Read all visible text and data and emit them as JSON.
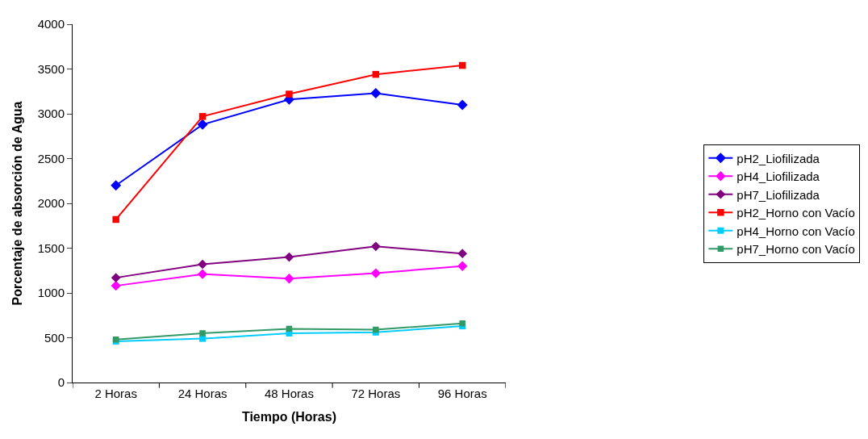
{
  "chart_data": {
    "type": "line",
    "xlabel": "Tiempo (Horas)",
    "ylabel": "Porcentaje de absorción de Agua",
    "categories": [
      "2 Horas",
      "24 Horas",
      "48 Horas",
      "72 Horas",
      "96 Horas"
    ],
    "ylim": [
      0,
      4000
    ],
    "yticks": [
      0,
      500,
      1000,
      1500,
      2000,
      2500,
      3000,
      3500,
      4000
    ],
    "grid": false,
    "legend": "right",
    "series": [
      {
        "name": "pH2_Liofilizada",
        "color": "#0000ff",
        "marker": "diamond",
        "values": [
          2200,
          2880,
          3160,
          3230,
          3100
        ]
      },
      {
        "name": "pH4_Liofilizada",
        "color": "#ff00ff",
        "marker": "diamond",
        "values": [
          1080,
          1210,
          1160,
          1220,
          1300
        ]
      },
      {
        "name": "pH7_Liofilizada",
        "color": "#800080",
        "marker": "diamond",
        "values": [
          1170,
          1320,
          1400,
          1520,
          1440
        ]
      },
      {
        "name": "pH2_Horno con Vacío",
        "color": "#ff0000",
        "marker": "square",
        "values": [
          1820,
          2970,
          3220,
          3440,
          3540
        ]
      },
      {
        "name": "pH4_Horno con Vacío",
        "color": "#00ccff",
        "marker": "square",
        "values": [
          460,
          490,
          550,
          560,
          630
        ]
      },
      {
        "name": "pH7_Horno con Vacío",
        "color": "#339966",
        "marker": "square",
        "values": [
          480,
          550,
          600,
          590,
          660
        ]
      }
    ]
  }
}
